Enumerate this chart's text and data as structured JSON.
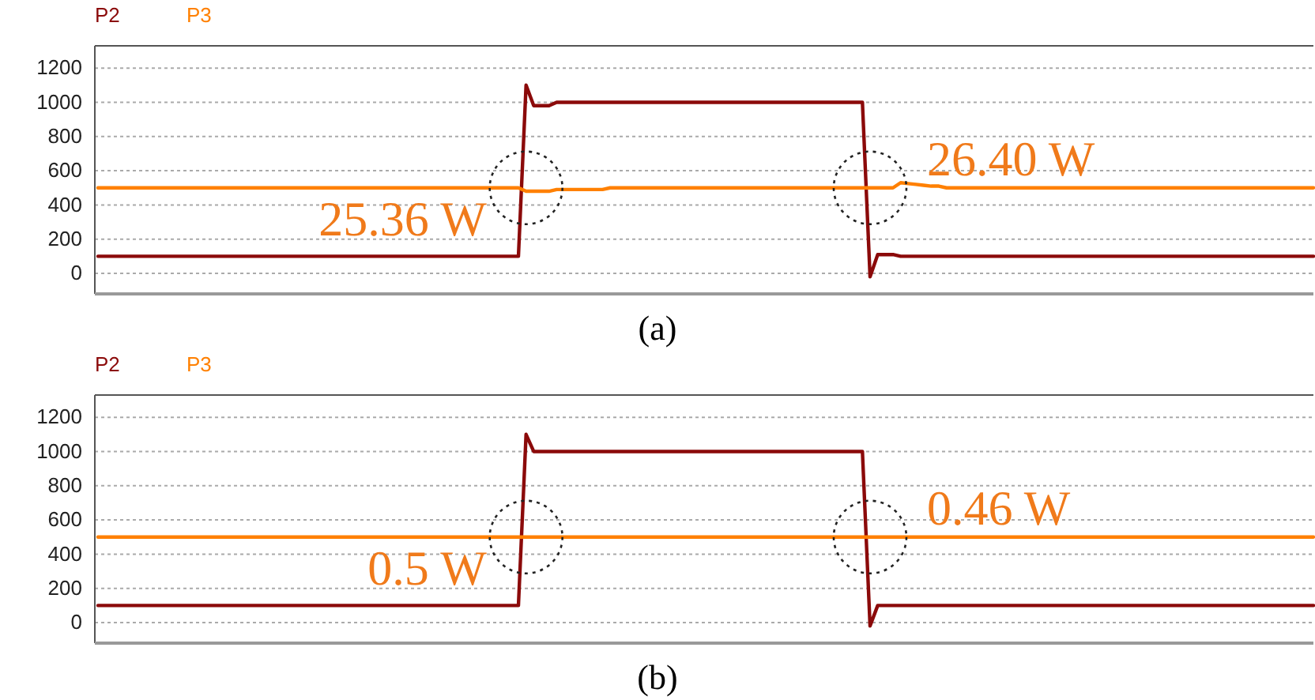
{
  "chart_data": [
    {
      "type": "line",
      "categories": [
        null,
        null,
        null,
        null,
        null,
        null,
        null,
        null,
        null,
        null,
        null,
        null,
        null,
        null,
        null,
        null,
        null,
        null,
        null,
        null,
        null,
        null,
        null,
        null,
        null,
        null,
        null,
        null,
        null,
        null,
        null,
        null,
        null,
        null,
        null,
        null,
        null,
        null,
        null,
        null,
        null,
        null,
        null,
        null,
        null,
        null,
        null,
        null,
        null,
        null,
        null,
        null,
        null,
        null,
        null,
        null,
        null,
        null,
        null,
        null,
        null,
        null,
        null,
        null,
        null,
        null,
        null,
        null,
        null,
        null,
        null,
        null,
        null,
        null,
        null,
        null,
        null,
        null,
        null,
        null,
        null,
        null,
        null,
        null,
        null,
        null,
        null,
        null,
        null,
        null,
        null,
        null,
        null,
        null,
        null,
        null,
        null,
        null,
        null,
        null,
        null,
        null,
        null,
        null,
        null,
        null,
        null,
        null,
        null,
        null,
        null,
        null,
        null,
        null,
        null,
        null,
        null,
        null,
        null,
        null,
        null,
        null,
        null,
        null,
        null,
        null,
        null,
        null,
        null,
        null,
        null,
        null,
        null,
        null,
        null,
        null,
        null,
        null,
        null,
        null,
        null,
        null,
        null,
        null,
        null,
        null,
        null,
        null,
        null,
        null,
        null,
        null,
        null,
        null,
        null,
        null,
        null,
        null,
        null,
        null
      ],
      "ylim": [
        -120,
        1330
      ],
      "yticks": [
        0,
        200,
        400,
        600,
        800,
        1000,
        1200
      ],
      "grid": "y",
      "series": [
        {
          "name": "P2",
          "color": "#8b0a0a",
          "values": [
            100,
            100,
            100,
            100,
            100,
            100,
            100,
            100,
            100,
            100,
            100,
            100,
            100,
            100,
            100,
            100,
            100,
            100,
            100,
            100,
            100,
            100,
            100,
            100,
            100,
            100,
            100,
            100,
            100,
            100,
            100,
            100,
            100,
            100,
            100,
            100,
            100,
            100,
            100,
            100,
            100,
            100,
            100,
            100,
            100,
            100,
            100,
            100,
            100,
            100,
            100,
            100,
            100,
            100,
            100,
            100,
            1100,
            980,
            980,
            980,
            1000,
            1000,
            1000,
            1000,
            1000,
            1000,
            1000,
            1000,
            1000,
            1000,
            1000,
            1000,
            1000,
            1000,
            1000,
            1000,
            1000,
            1000,
            1000,
            1000,
            1000,
            1000,
            1000,
            1000,
            1000,
            1000,
            1000,
            1000,
            1000,
            1000,
            1000,
            1000,
            1000,
            1000,
            1000,
            1000,
            1000,
            1000,
            1000,
            1000,
            1000,
            -20,
            110,
            110,
            110,
            100,
            100,
            100,
            100,
            100,
            100,
            100,
            100,
            100,
            100,
            100,
            100,
            100,
            100,
            100,
            100,
            100,
            100,
            100,
            100,
            100,
            100,
            100,
            100,
            100,
            100,
            100,
            100,
            100,
            100,
            100,
            100,
            100,
            100,
            100,
            100,
            100,
            100,
            100,
            100,
            100,
            100,
            100,
            100,
            100,
            100,
            100,
            100,
            100,
            100,
            100,
            100,
            100,
            100,
            100
          ]
        },
        {
          "name": "P3",
          "color": "#ff8000",
          "values": [
            500,
            500,
            500,
            500,
            500,
            500,
            500,
            500,
            500,
            500,
            500,
            500,
            500,
            500,
            500,
            500,
            500,
            500,
            500,
            500,
            500,
            500,
            500,
            500,
            500,
            500,
            500,
            500,
            500,
            500,
            500,
            500,
            500,
            500,
            500,
            500,
            500,
            500,
            500,
            500,
            500,
            500,
            500,
            500,
            500,
            500,
            500,
            500,
            500,
            500,
            500,
            500,
            500,
            500,
            500,
            500,
            480,
            480,
            480,
            480,
            490,
            490,
            490,
            490,
            490,
            490,
            490,
            500,
            500,
            500,
            500,
            500,
            500,
            500,
            500,
            500,
            500,
            500,
            500,
            500,
            500,
            500,
            500,
            500,
            500,
            500,
            500,
            500,
            500,
            500,
            500,
            500,
            500,
            500,
            500,
            500,
            500,
            500,
            500,
            500,
            500,
            500,
            500,
            500,
            500,
            530,
            525,
            520,
            515,
            510,
            510,
            500,
            500,
            500,
            500,
            500,
            500,
            500,
            500,
            500,
            500,
            500,
            500,
            500,
            500,
            500,
            500,
            500,
            500,
            500,
            500,
            500,
            500,
            500,
            500,
            500,
            500,
            500,
            500,
            500,
            500,
            500,
            500,
            500,
            500,
            500,
            500,
            500,
            500,
            500,
            500,
            500,
            500,
            500,
            500,
            500,
            500,
            500,
            500,
            500
          ]
        }
      ],
      "annotations": [
        "25.36 W",
        "26.40 W",
        "(a)"
      ]
    },
    {
      "type": "line",
      "categories": [
        null,
        null,
        null,
        null,
        null,
        null,
        null,
        null,
        null,
        null,
        null,
        null,
        null,
        null,
        null,
        null,
        null,
        null,
        null,
        null,
        null,
        null,
        null,
        null,
        null,
        null,
        null,
        null,
        null,
        null,
        null,
        null,
        null,
        null,
        null,
        null,
        null,
        null,
        null,
        null,
        null,
        null,
        null,
        null,
        null,
        null,
        null,
        null,
        null,
        null,
        null,
        null,
        null,
        null,
        null,
        null,
        null,
        null,
        null,
        null,
        null,
        null,
        null,
        null,
        null,
        null,
        null,
        null,
        null,
        null,
        null,
        null,
        null,
        null,
        null,
        null,
        null,
        null,
        null,
        null,
        null,
        null,
        null,
        null,
        null,
        null,
        null,
        null,
        null,
        null,
        null,
        null,
        null,
        null,
        null,
        null,
        null,
        null,
        null,
        null,
        null,
        null,
        null,
        null,
        null,
        null,
        null,
        null,
        null,
        null,
        null,
        null,
        null,
        null,
        null,
        null,
        null,
        null,
        null,
        null,
        null,
        null,
        null,
        null,
        null,
        null,
        null,
        null,
        null,
        null,
        null,
        null,
        null,
        null,
        null,
        null,
        null,
        null,
        null,
        null,
        null,
        null,
        null,
        null,
        null,
        null,
        null,
        null,
        null,
        null,
        null,
        null,
        null,
        null,
        null,
        null,
        null,
        null,
        null,
        null
      ],
      "ylim": [
        -120,
        1330
      ],
      "yticks": [
        0,
        200,
        400,
        600,
        800,
        1000,
        1200
      ],
      "grid": "y",
      "series": [
        {
          "name": "P2",
          "color": "#8b0a0a",
          "values": [
            100,
            100,
            100,
            100,
            100,
            100,
            100,
            100,
            100,
            100,
            100,
            100,
            100,
            100,
            100,
            100,
            100,
            100,
            100,
            100,
            100,
            100,
            100,
            100,
            100,
            100,
            100,
            100,
            100,
            100,
            100,
            100,
            100,
            100,
            100,
            100,
            100,
            100,
            100,
            100,
            100,
            100,
            100,
            100,
            100,
            100,
            100,
            100,
            100,
            100,
            100,
            100,
            100,
            100,
            100,
            100,
            1100,
            1000,
            1000,
            1000,
            1000,
            1000,
            1000,
            1000,
            1000,
            1000,
            1000,
            1000,
            1000,
            1000,
            1000,
            1000,
            1000,
            1000,
            1000,
            1000,
            1000,
            1000,
            1000,
            1000,
            1000,
            1000,
            1000,
            1000,
            1000,
            1000,
            1000,
            1000,
            1000,
            1000,
            1000,
            1000,
            1000,
            1000,
            1000,
            1000,
            1000,
            1000,
            1000,
            1000,
            1000,
            -20,
            100,
            100,
            100,
            100,
            100,
            100,
            100,
            100,
            100,
            100,
            100,
            100,
            100,
            100,
            100,
            100,
            100,
            100,
            100,
            100,
            100,
            100,
            100,
            100,
            100,
            100,
            100,
            100,
            100,
            100,
            100,
            100,
            100,
            100,
            100,
            100,
            100,
            100,
            100,
            100,
            100,
            100,
            100,
            100,
            100,
            100,
            100,
            100,
            100,
            100,
            100,
            100,
            100,
            100,
            100,
            100,
            100,
            100
          ]
        },
        {
          "name": "P3",
          "color": "#ff8000",
          "values": [
            500,
            500,
            500,
            500,
            500,
            500,
            500,
            500,
            500,
            500,
            500,
            500,
            500,
            500,
            500,
            500,
            500,
            500,
            500,
            500,
            500,
            500,
            500,
            500,
            500,
            500,
            500,
            500,
            500,
            500,
            500,
            500,
            500,
            500,
            500,
            500,
            500,
            500,
            500,
            500,
            500,
            500,
            500,
            500,
            500,
            500,
            500,
            500,
            500,
            500,
            500,
            500,
            500,
            500,
            500,
            500,
            500,
            500,
            500,
            500,
            500,
            500,
            500,
            500,
            500,
            500,
            500,
            500,
            500,
            500,
            500,
            500,
            500,
            500,
            500,
            500,
            500,
            500,
            500,
            500,
            500,
            500,
            500,
            500,
            500,
            500,
            500,
            500,
            500,
            500,
            500,
            500,
            500,
            500,
            500,
            500,
            500,
            500,
            500,
            500,
            500,
            500,
            500,
            500,
            500,
            500,
            500,
            500,
            500,
            500,
            500,
            500,
            500,
            500,
            500,
            500,
            500,
            500,
            500,
            500,
            500,
            500,
            500,
            500,
            500,
            500,
            500,
            500,
            500,
            500,
            500,
            500,
            500,
            500,
            500,
            500,
            500,
            500,
            500,
            500,
            500,
            500,
            500,
            500,
            500,
            500,
            500,
            500,
            500,
            500,
            500,
            500,
            500,
            500,
            500,
            500,
            500,
            500,
            500,
            500
          ]
        }
      ],
      "annotations": [
        "0.5 W",
        "0.46 W",
        "(b)"
      ]
    }
  ]
}
